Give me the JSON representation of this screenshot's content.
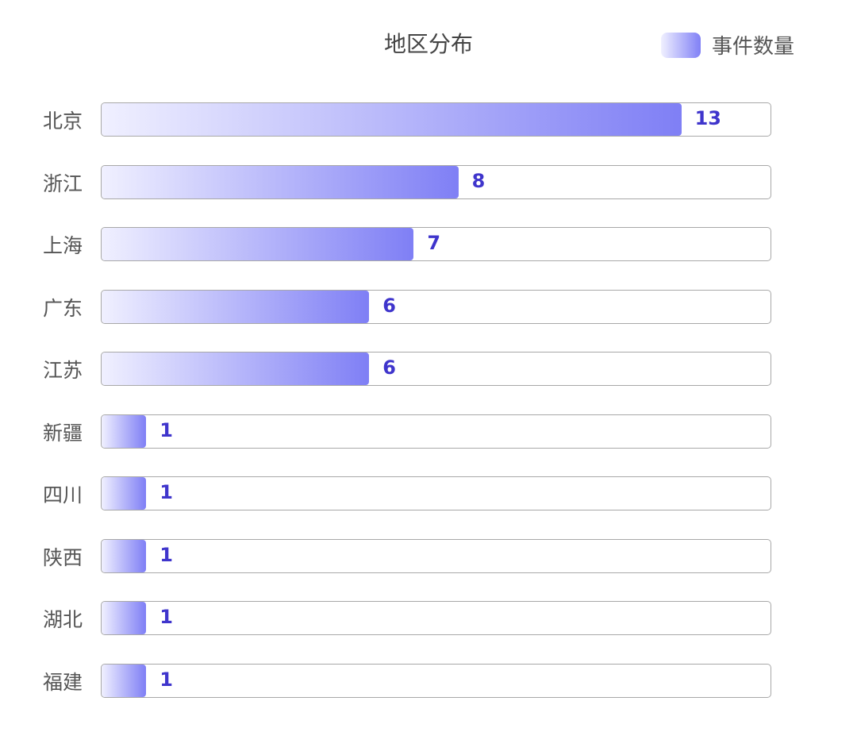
{
  "chart_data": {
    "type": "bar",
    "orientation": "horizontal",
    "title": "地区分布",
    "categories": [
      "北京",
      "浙江",
      "上海",
      "广东",
      "江苏",
      "新疆",
      "四川",
      "陕西",
      "湖北",
      "福建"
    ],
    "series": [
      {
        "name": "事件数量",
        "values": [
          13,
          8,
          7,
          6,
          6,
          1,
          1,
          1,
          1,
          1
        ]
      }
    ],
    "xlim": [
      0,
      15
    ],
    "grid": false,
    "legend": "top-right",
    "colors": {
      "gradient_start": "#f0f0ff",
      "gradient_end": "#7f7ff5",
      "value_label": "#3f35cc",
      "track_border": "#a8a8a8"
    }
  }
}
